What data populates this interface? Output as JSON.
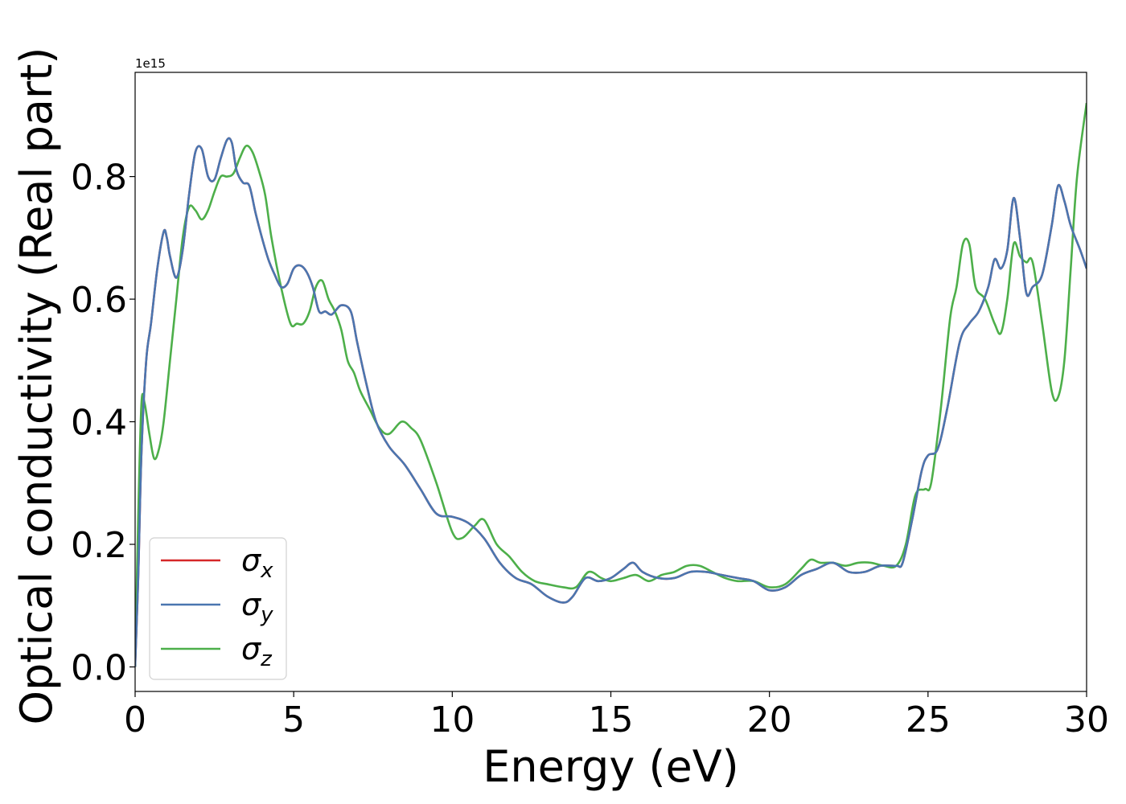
{
  "chart_data": {
    "type": "line",
    "xlabel": "Energy (eV)",
    "ylabel": "Optical conductivity (Real part)",
    "offset_label": "1e15",
    "xlim": [
      0,
      30
    ],
    "ylim": [
      -0.04,
      0.97
    ],
    "y_scale": 1000000000000000.0,
    "xticks": [
      0,
      5,
      10,
      15,
      20,
      25,
      30
    ],
    "xtick_labels": [
      "0",
      "5",
      "10",
      "15",
      "20",
      "25",
      "30"
    ],
    "yticks": [
      0.0,
      0.2,
      0.4,
      0.6,
      0.8
    ],
    "ytick_labels": [
      "0.0",
      "0.2",
      "0.4",
      "0.6",
      "0.8"
    ],
    "grid": false,
    "legend_position": "lower-left",
    "series": [
      {
        "name": "σx",
        "base": "σ",
        "sub": "x",
        "color": "#d62728",
        "x": [
          0,
          0.1,
          0.2,
          0.35,
          0.5,
          0.7,
          0.9,
          1.0,
          1.1,
          1.3,
          1.5,
          1.7,
          1.9,
          2.1,
          2.3,
          2.5,
          2.7,
          2.9,
          3.05,
          3.2,
          3.4,
          3.6,
          3.8,
          4.0,
          4.2,
          4.4,
          4.6,
          4.8,
          5.0,
          5.2,
          5.4,
          5.6,
          5.8,
          6.0,
          6.2,
          6.5,
          6.8,
          7.0,
          7.3,
          7.6,
          8.0,
          8.5,
          9.0,
          9.5,
          10.0,
          10.5,
          11.0,
          11.5,
          12.0,
          12.5,
          13.0,
          13.5,
          13.8,
          14.2,
          14.6,
          15.0,
          15.4,
          15.7,
          16.0,
          16.5,
          17.0,
          17.5,
          18.0,
          18.5,
          19.0,
          19.5,
          20.0,
          20.5,
          21.0,
          21.5,
          22.0,
          22.5,
          23.0,
          23.5,
          24.0,
          24.2,
          24.5,
          24.8,
          25.0,
          25.3,
          25.6,
          26.0,
          26.3,
          26.6,
          26.9,
          27.1,
          27.3,
          27.5,
          27.7,
          27.9,
          28.1,
          28.3,
          28.6,
          28.9,
          29.1,
          29.3,
          29.5,
          29.8,
          30.0
        ],
        "y": [
          0.0,
          0.15,
          0.35,
          0.5,
          0.56,
          0.65,
          0.71,
          0.7,
          0.67,
          0.635,
          0.68,
          0.77,
          0.84,
          0.845,
          0.8,
          0.795,
          0.83,
          0.86,
          0.855,
          0.81,
          0.79,
          0.785,
          0.74,
          0.7,
          0.665,
          0.64,
          0.62,
          0.625,
          0.65,
          0.655,
          0.645,
          0.62,
          0.58,
          0.58,
          0.575,
          0.59,
          0.58,
          0.53,
          0.46,
          0.4,
          0.36,
          0.33,
          0.29,
          0.25,
          0.245,
          0.235,
          0.21,
          0.17,
          0.145,
          0.135,
          0.115,
          0.105,
          0.115,
          0.145,
          0.14,
          0.145,
          0.16,
          0.17,
          0.155,
          0.145,
          0.145,
          0.155,
          0.155,
          0.15,
          0.145,
          0.14,
          0.125,
          0.13,
          0.15,
          0.16,
          0.17,
          0.155,
          0.155,
          0.165,
          0.165,
          0.17,
          0.24,
          0.32,
          0.345,
          0.355,
          0.42,
          0.53,
          0.56,
          0.58,
          0.62,
          0.665,
          0.65,
          0.68,
          0.765,
          0.7,
          0.61,
          0.62,
          0.64,
          0.72,
          0.785,
          0.76,
          0.72,
          0.68,
          0.65
        ]
      },
      {
        "name": "σy",
        "base": "σ",
        "sub": "y",
        "color": "#4a76b0",
        "x": [
          0,
          0.1,
          0.2,
          0.35,
          0.5,
          0.7,
          0.9,
          1.0,
          1.1,
          1.3,
          1.5,
          1.7,
          1.9,
          2.1,
          2.3,
          2.5,
          2.7,
          2.9,
          3.05,
          3.2,
          3.4,
          3.6,
          3.8,
          4.0,
          4.2,
          4.4,
          4.6,
          4.8,
          5.0,
          5.2,
          5.4,
          5.6,
          5.8,
          6.0,
          6.2,
          6.5,
          6.8,
          7.0,
          7.3,
          7.6,
          8.0,
          8.5,
          9.0,
          9.5,
          10.0,
          10.5,
          11.0,
          11.5,
          12.0,
          12.5,
          13.0,
          13.5,
          13.8,
          14.2,
          14.6,
          15.0,
          15.4,
          15.7,
          16.0,
          16.5,
          17.0,
          17.5,
          18.0,
          18.5,
          19.0,
          19.5,
          20.0,
          20.5,
          21.0,
          21.5,
          22.0,
          22.5,
          23.0,
          23.5,
          24.0,
          24.2,
          24.5,
          24.8,
          25.0,
          25.3,
          25.6,
          26.0,
          26.3,
          26.6,
          26.9,
          27.1,
          27.3,
          27.5,
          27.7,
          27.9,
          28.1,
          28.3,
          28.6,
          28.9,
          29.1,
          29.3,
          29.5,
          29.8,
          30.0
        ],
        "y": [
          0.0,
          0.15,
          0.35,
          0.5,
          0.56,
          0.65,
          0.71,
          0.7,
          0.67,
          0.635,
          0.68,
          0.77,
          0.84,
          0.845,
          0.8,
          0.795,
          0.83,
          0.86,
          0.855,
          0.81,
          0.79,
          0.785,
          0.74,
          0.7,
          0.665,
          0.64,
          0.62,
          0.625,
          0.65,
          0.655,
          0.645,
          0.62,
          0.58,
          0.58,
          0.575,
          0.59,
          0.58,
          0.53,
          0.46,
          0.4,
          0.36,
          0.33,
          0.29,
          0.25,
          0.245,
          0.235,
          0.21,
          0.17,
          0.145,
          0.135,
          0.115,
          0.105,
          0.115,
          0.145,
          0.14,
          0.145,
          0.16,
          0.17,
          0.155,
          0.145,
          0.145,
          0.155,
          0.155,
          0.15,
          0.145,
          0.14,
          0.125,
          0.13,
          0.15,
          0.16,
          0.17,
          0.155,
          0.155,
          0.165,
          0.165,
          0.17,
          0.24,
          0.32,
          0.345,
          0.355,
          0.42,
          0.53,
          0.56,
          0.58,
          0.62,
          0.665,
          0.65,
          0.68,
          0.765,
          0.7,
          0.61,
          0.62,
          0.64,
          0.72,
          0.785,
          0.76,
          0.72,
          0.68,
          0.65
        ]
      },
      {
        "name": "σz",
        "base": "σ",
        "sub": "z",
        "color": "#4daf4a",
        "x": [
          0,
          0.1,
          0.2,
          0.3,
          0.45,
          0.6,
          0.75,
          0.9,
          1.1,
          1.3,
          1.5,
          1.7,
          1.9,
          2.1,
          2.3,
          2.5,
          2.7,
          2.9,
          3.1,
          3.3,
          3.5,
          3.7,
          3.9,
          4.1,
          4.3,
          4.6,
          4.9,
          5.1,
          5.3,
          5.5,
          5.7,
          5.9,
          6.1,
          6.3,
          6.5,
          6.7,
          6.9,
          7.1,
          7.4,
          7.7,
          8.0,
          8.4,
          8.7,
          9.0,
          9.5,
          10.0,
          10.3,
          10.7,
          11.0,
          11.4,
          11.8,
          12.2,
          12.6,
          13.0,
          13.5,
          13.9,
          14.3,
          14.7,
          15.0,
          15.4,
          15.8,
          16.2,
          16.6,
          17.0,
          17.4,
          17.8,
          18.2,
          18.6,
          19.0,
          19.5,
          20.0,
          20.5,
          21.0,
          21.3,
          21.6,
          22.0,
          22.4,
          22.8,
          23.2,
          23.6,
          24.0,
          24.3,
          24.6,
          24.9,
          25.1,
          25.4,
          25.7,
          25.9,
          26.1,
          26.3,
          26.5,
          26.8,
          27.1,
          27.3,
          27.5,
          27.7,
          27.9,
          28.1,
          28.3,
          28.6,
          28.9,
          29.1,
          29.3,
          29.5,
          29.7,
          30.0
        ],
        "y": [
          0.0,
          0.25,
          0.43,
          0.43,
          0.38,
          0.34,
          0.355,
          0.4,
          0.5,
          0.6,
          0.7,
          0.75,
          0.745,
          0.73,
          0.745,
          0.775,
          0.8,
          0.8,
          0.805,
          0.83,
          0.85,
          0.84,
          0.81,
          0.77,
          0.7,
          0.62,
          0.56,
          0.56,
          0.56,
          0.58,
          0.62,
          0.63,
          0.6,
          0.58,
          0.55,
          0.5,
          0.48,
          0.45,
          0.42,
          0.39,
          0.38,
          0.4,
          0.39,
          0.37,
          0.3,
          0.22,
          0.21,
          0.23,
          0.24,
          0.2,
          0.18,
          0.155,
          0.14,
          0.135,
          0.13,
          0.13,
          0.155,
          0.145,
          0.14,
          0.145,
          0.15,
          0.14,
          0.15,
          0.155,
          0.165,
          0.165,
          0.155,
          0.145,
          0.14,
          0.14,
          0.13,
          0.135,
          0.16,
          0.175,
          0.17,
          0.17,
          0.165,
          0.17,
          0.17,
          0.165,
          0.165,
          0.2,
          0.28,
          0.29,
          0.3,
          0.42,
          0.57,
          0.62,
          0.69,
          0.69,
          0.62,
          0.6,
          0.56,
          0.545,
          0.6,
          0.69,
          0.67,
          0.66,
          0.66,
          0.56,
          0.45,
          0.44,
          0.5,
          0.65,
          0.8,
          0.92
        ]
      }
    ]
  }
}
